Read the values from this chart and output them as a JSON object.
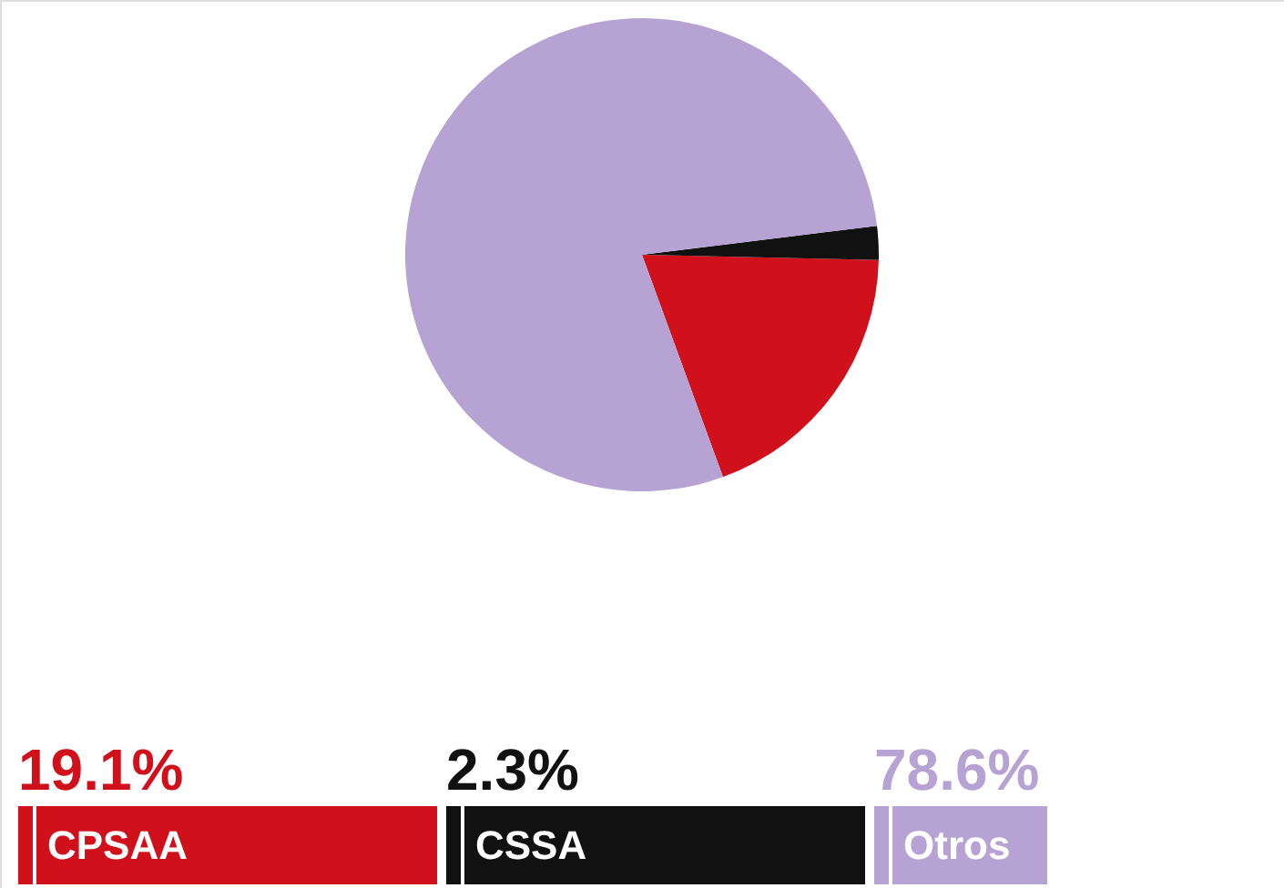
{
  "chart_data": {
    "type": "pie",
    "categories": [
      "CPSAA",
      "CSSA",
      "Otros"
    ],
    "values": [
      19.1,
      2.3,
      78.6
    ],
    "colors": [
      "#d0101a",
      "#111111",
      "#b7a3d3"
    ],
    "value_labels": [
      "19.1%",
      "2.3%",
      "78.6%"
    ],
    "legend": "bottom"
  }
}
